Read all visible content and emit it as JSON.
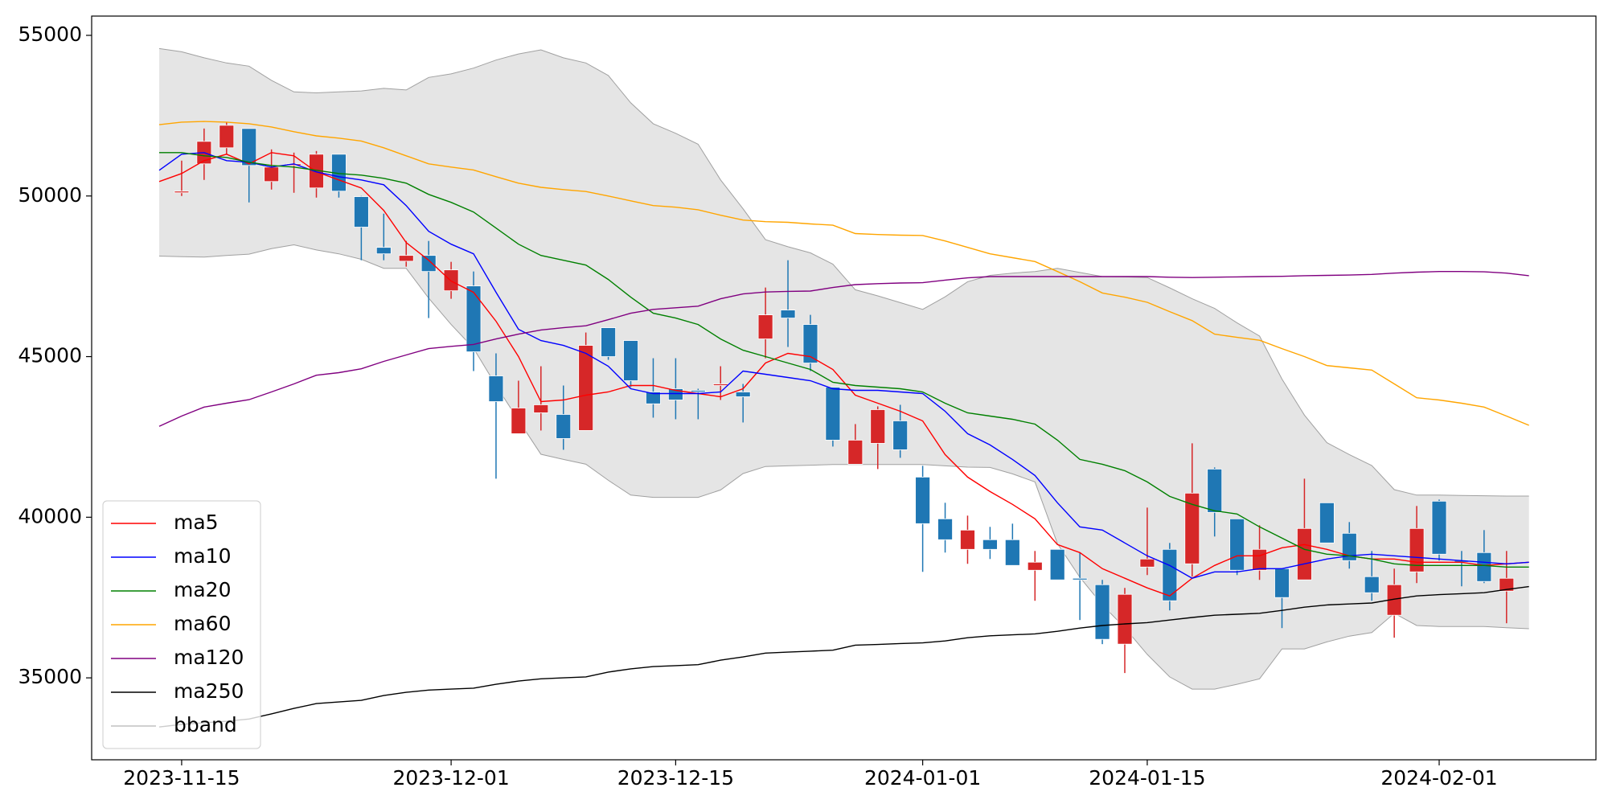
{
  "chart_data": {
    "type": "candlestick",
    "x": [
      "2023-11-14",
      "2023-11-15",
      "2023-11-16",
      "2023-11-17",
      "2023-11-20",
      "2023-11-21",
      "2023-11-22",
      "2023-11-23",
      "2023-11-24",
      "2023-11-27",
      "2023-11-28",
      "2023-11-29",
      "2023-11-30",
      "2023-12-01",
      "2023-12-04",
      "2023-12-05",
      "2023-12-06",
      "2023-12-07",
      "2023-12-08",
      "2023-12-11",
      "2023-12-12",
      "2023-12-13",
      "2023-12-14",
      "2023-12-15",
      "2023-12-18",
      "2023-12-19",
      "2023-12-20",
      "2023-12-21",
      "2023-12-22",
      "2023-12-25",
      "2023-12-26",
      "2023-12-27",
      "2023-12-28",
      "2023-12-29",
      "2024-01-01",
      "2024-01-02",
      "2024-01-03",
      "2024-01-04",
      "2024-01-05",
      "2024-01-08",
      "2024-01-09",
      "2024-01-10",
      "2024-01-11",
      "2024-01-12",
      "2024-01-15",
      "2024-01-16",
      "2024-01-17",
      "2024-01-18",
      "2024-01-19",
      "2024-01-22",
      "2024-01-23",
      "2024-01-24",
      "2024-01-25",
      "2024-01-26",
      "2024-01-29",
      "2024-01-30",
      "2024-01-31",
      "2024-02-01",
      "2024-02-02",
      "2024-02-05",
      "2024-02-06",
      "2024-02-07"
    ],
    "open": [
      null,
      50100,
      51000,
      51500,
      52100,
      50450,
      50950,
      50250,
      51300,
      49980,
      48400,
      47970,
      48150,
      47050,
      47200,
      44400,
      42600,
      43250,
      43200,
      42700,
      45900,
      45500,
      43900,
      44000,
      43950,
      44100,
      43900,
      45550,
      46450,
      46000,
      44050,
      41650,
      42300,
      43000,
      41250,
      39950,
      39000,
      39300,
      39300,
      38350,
      39000,
      38100,
      37900,
      36050,
      38450,
      39000,
      38550,
      41500,
      39950,
      38350,
      38400,
      38050,
      40450,
      39500,
      38150,
      36950,
      38300,
      40500,
      38650,
      38900,
      37700,
      null
    ],
    "high": [
      null,
      51100,
      52100,
      52300,
      52100,
      51450,
      51350,
      51400,
      51300,
      50000,
      49450,
      48600,
      48600,
      47950,
      47650,
      45100,
      44250,
      44700,
      44100,
      45750,
      45900,
      45500,
      44950,
      44950,
      44000,
      44700,
      44150,
      47150,
      48000,
      46300,
      44050,
      42900,
      43450,
      43500,
      41600,
      40450,
      40050,
      39700,
      39800,
      38950,
      39000,
      38900,
      38050,
      37800,
      40300,
      39200,
      42300,
      41550,
      39950,
      39750,
      38400,
      41200,
      40450,
      39850,
      38950,
      38400,
      40350,
      40550,
      38950,
      39600,
      38950,
      null
    ],
    "low": [
      null,
      50000,
      50500,
      51300,
      49800,
      50200,
      50100,
      49950,
      49950,
      48000,
      48000,
      47800,
      46200,
      46800,
      44550,
      41200,
      42600,
      42700,
      42100,
      42700,
      44900,
      44050,
      43100,
      43050,
      43050,
      43650,
      42950,
      44950,
      45300,
      44550,
      42200,
      41650,
      41500,
      41850,
      38300,
      38900,
      38550,
      38700,
      38500,
      37400,
      38050,
      36800,
      36050,
      35150,
      38200,
      37100,
      38150,
      39400,
      38200,
      38050,
      36550,
      38050,
      39200,
      38400,
      37400,
      36250,
      37950,
      38650,
      37850,
      37950,
      36700,
      null
    ],
    "close": [
      null,
      50150,
      51700,
      52200,
      50950,
      50900,
      51000,
      51300,
      50150,
      49030,
      48200,
      48150,
      47650,
      47700,
      45150,
      43600,
      43400,
      43500,
      42450,
      45350,
      45000,
      44250,
      43530,
      43650,
      43900,
      44150,
      43750,
      46300,
      46200,
      44800,
      42400,
      42400,
      43350,
      42100,
      39800,
      39300,
      39600,
      39000,
      38500,
      38600,
      38050,
      38050,
      36200,
      37600,
      38700,
      37400,
      40750,
      40150,
      38350,
      39000,
      37500,
      39650,
      39200,
      38650,
      37650,
      37900,
      39650,
      38850,
      38600,
      38000,
      38100,
      null
    ],
    "up_color": "#d62728",
    "down_color": "#1f77b4",
    "series": [
      {
        "name": "ma5",
        "color": "#ff0000",
        "values": [
          50450,
          50700,
          51100,
          51300,
          51000,
          51350,
          51250,
          50750,
          50500,
          50250,
          49550,
          48550,
          48000,
          47350,
          47000,
          46100,
          45000,
          43600,
          43650,
          43800,
          43900,
          44100,
          44100,
          43950,
          43850,
          43750,
          44000,
          44800,
          45100,
          45000,
          44600,
          43800,
          43550,
          43300,
          43000,
          41950,
          41250,
          40800,
          40400,
          39950,
          39150,
          38900,
          38400,
          38100,
          37800,
          37550,
          38100,
          38500,
          38800,
          38800,
          39050,
          39150,
          39000,
          38800,
          38700,
          38700,
          38600,
          38600,
          38600,
          38500,
          38550,
          38600
        ]
      },
      {
        "name": "ma10",
        "color": "#0000ff",
        "values": [
          50800,
          51300,
          51350,
          51100,
          51050,
          50900,
          51000,
          50750,
          50600,
          50500,
          50350,
          49700,
          48900,
          48500,
          48200,
          47000,
          45850,
          45500,
          45350,
          45100,
          44700,
          44000,
          43850,
          43850,
          43850,
          43900,
          44550,
          44450,
          44350,
          44250,
          44000,
          43950,
          43950,
          43900,
          43850,
          43300,
          42600,
          42250,
          41800,
          41300,
          40450,
          39700,
          39600,
          39200,
          38800,
          38500,
          38100,
          38300,
          38300,
          38400,
          38400,
          38550,
          38700,
          38800,
          38850,
          38800,
          38750,
          38700,
          38650,
          38600,
          38550,
          38600
        ]
      },
      {
        "name": "ma20",
        "color": "#008000",
        "values": [
          51350,
          51350,
          51250,
          51200,
          51050,
          50950,
          50900,
          50800,
          50700,
          50650,
          50550,
          50400,
          50050,
          49800,
          49500,
          49000,
          48500,
          48150,
          48000,
          47850,
          47400,
          46850,
          46350,
          46200,
          46000,
          45550,
          45200,
          45000,
          44800,
          44600,
          44200,
          44100,
          44050,
          44000,
          43900,
          43550,
          43250,
          43150,
          43050,
          42900,
          42400,
          41800,
          41650,
          41450,
          41100,
          40650,
          40400,
          40200,
          40100,
          39700,
          39350,
          39000,
          38850,
          38800,
          38700,
          38550,
          38500,
          38500,
          38500,
          38500,
          38450,
          38450
        ]
      },
      {
        "name": "ma60",
        "color": "#ffa500",
        "values": [
          52220,
          52300,
          52320,
          52300,
          52250,
          52150,
          52000,
          51870,
          51800,
          51710,
          51500,
          51250,
          51000,
          50900,
          50810,
          50600,
          50400,
          50270,
          50200,
          50140,
          50000,
          49850,
          49700,
          49650,
          49570,
          49400,
          49250,
          49200,
          49180,
          49130,
          49090,
          48830,
          48800,
          48780,
          48770,
          48600,
          48400,
          48200,
          48080,
          47960,
          47650,
          47330,
          46980,
          46850,
          46690,
          46400,
          46120,
          45700,
          45600,
          45510,
          45250,
          45000,
          44720,
          44650,
          44580,
          44150,
          43720,
          43650,
          43550,
          43430,
          43150,
          42860
        ]
      },
      {
        "name": "ma120",
        "color": "#800080",
        "values": [
          42830,
          43150,
          43430,
          43550,
          43660,
          43900,
          44150,
          44420,
          44500,
          44620,
          44850,
          45050,
          45250,
          45320,
          45380,
          45550,
          45700,
          45830,
          45900,
          45960,
          46150,
          46350,
          46470,
          46520,
          46570,
          46800,
          46950,
          47010,
          47030,
          47040,
          47150,
          47240,
          47270,
          47290,
          47300,
          47380,
          47450,
          47490,
          47490,
          47490,
          47490,
          47490,
          47490,
          47490,
          47490,
          47470,
          47460,
          47470,
          47480,
          47490,
          47500,
          47520,
          47530,
          47540,
          47560,
          47600,
          47630,
          47650,
          47650,
          47640,
          47600,
          47520
        ]
      },
      {
        "name": "ma250",
        "color": "#000000",
        "values": [
          33470,
          33550,
          33600,
          33650,
          33720,
          33880,
          34050,
          34200,
          34250,
          34300,
          34450,
          34550,
          34620,
          34650,
          34680,
          34800,
          34900,
          34970,
          35000,
          35030,
          35180,
          35280,
          35350,
          35380,
          35410,
          35550,
          35650,
          35770,
          35800,
          35830,
          35860,
          36020,
          36040,
          36070,
          36090,
          36150,
          36250,
          36310,
          36340,
          36370,
          36450,
          36550,
          36630,
          36680,
          36720,
          36800,
          36880,
          36950,
          36980,
          37010,
          37100,
          37200,
          37270,
          37300,
          37330,
          37450,
          37550,
          37590,
          37620,
          37650,
          37750,
          37840
        ]
      }
    ],
    "bband": {
      "name": "bband",
      "color": "#a0a0a0",
      "fill": "#e5e5e5",
      "upper": [
        54590,
        54490,
        54300,
        54140,
        54040,
        53600,
        53240,
        53210,
        53240,
        53270,
        53350,
        53300,
        53690,
        53800,
        53980,
        54230,
        54420,
        54550,
        54300,
        54140,
        53750,
        52900,
        52250,
        51950,
        51610,
        50500,
        49600,
        48640,
        48420,
        48230,
        47880,
        47080,
        46890,
        46680,
        46470,
        46860,
        47330,
        47530,
        47600,
        47650,
        47750,
        47620,
        47490,
        47480,
        47460,
        47140,
        46800,
        46500,
        46050,
        45640,
        44300,
        43180,
        42320,
        41950,
        41610,
        40860,
        40690,
        40690,
        40680,
        40670,
        40660,
        40660
      ],
      "lower": [
        48130,
        48110,
        48100,
        48150,
        48190,
        48360,
        48480,
        48320,
        48200,
        48030,
        47750,
        47750,
        46820,
        46000,
        45260,
        44100,
        43020,
        41960,
        41800,
        41650,
        41150,
        40690,
        40620,
        40620,
        40620,
        40850,
        41360,
        41580,
        41600,
        41620,
        41640,
        41640,
        41640,
        41640,
        41640,
        41600,
        41560,
        41550,
        41350,
        41100,
        39180,
        38130,
        37270,
        36560,
        35730,
        35030,
        34650,
        34650,
        34800,
        34970,
        35900,
        35900,
        36120,
        36300,
        36410,
        37010,
        36630,
        36600,
        36600,
        36600,
        36560,
        36530
      ]
    },
    "ylim": [
      32450,
      55600
    ],
    "yticks": [
      35000,
      40000,
      45000,
      50000,
      55000
    ],
    "xticks": [
      "2023-11-15",
      "2023-12-01",
      "2023-12-15",
      "2024-01-01",
      "2024-01-15",
      "2024-02-01"
    ],
    "legend": "lower left"
  }
}
